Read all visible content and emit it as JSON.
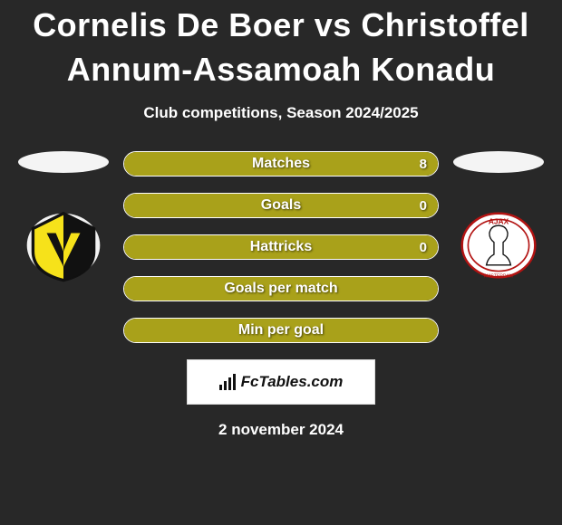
{
  "background_color": "#282828",
  "text_color": "#ffffff",
  "title": "Cornelis De Boer vs Christoffel Annum-Assamoah Konadu",
  "title_fontsize": 36,
  "subtitle": "Club competitions, Season 2024/2025",
  "subtitle_fontsize": 17,
  "bar_border_color": "#ffffff",
  "bar_label_color": "#ffffff",
  "bars": [
    {
      "label": "Matches",
      "value": "8",
      "fill_color": "#a9a11a",
      "fill_fraction": 1.0
    },
    {
      "label": "Goals",
      "value": "0",
      "fill_color": "#a9a11a",
      "fill_fraction": 1.0
    },
    {
      "label": "Hattricks",
      "value": "0",
      "fill_color": "#a9a11a",
      "fill_fraction": 1.0
    },
    {
      "label": "Goals per match",
      "value": "",
      "fill_color": "#a9a11a",
      "fill_fraction": 1.0
    },
    {
      "label": "Min per goal",
      "value": "",
      "fill_color": "#a9a11a",
      "fill_fraction": 1.0
    }
  ],
  "left_club_name": "vvv-venlo",
  "right_club_name": "ajax",
  "side_ellipse_color": "#f4f4f4",
  "logo_box": {
    "background": "#ffffff",
    "text_color": "#111111",
    "text": "FcTables.com"
  },
  "date": "2 november 2024"
}
